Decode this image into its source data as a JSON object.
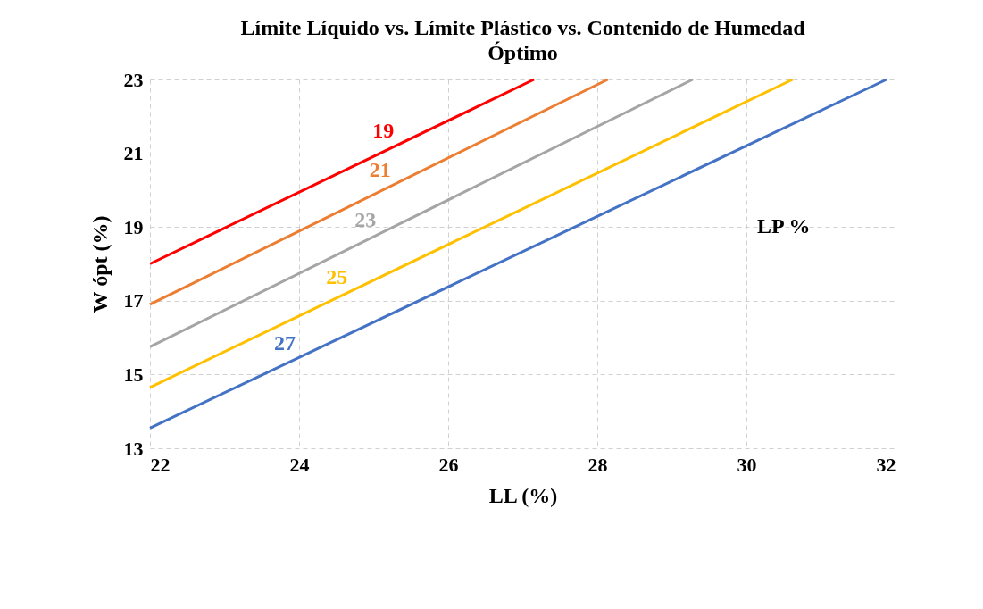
{
  "chart_data": {
    "type": "line",
    "title": "Límite Líquido vs. Límite Plástico vs. Contenido de Humedad Óptimo",
    "xlabel": "LL (%)",
    "ylabel": "W ópt (%)",
    "legend_title": "LP %",
    "series": [
      {
        "name": "19",
        "color": "#ff0000",
        "x": [
          22,
          27.15
        ],
        "values": [
          18.0,
          23
        ]
      },
      {
        "name": "21",
        "color": "#ed7d31",
        "x": [
          22,
          28.14
        ],
        "values": [
          16.9,
          23
        ]
      },
      {
        "name": "23",
        "color": "#a5a5a5",
        "x": [
          22,
          29.28
        ],
        "values": [
          15.75,
          23
        ]
      },
      {
        "name": "25",
        "color": "#ffc000",
        "x": [
          22,
          30.62
        ],
        "values": [
          14.65,
          23
        ]
      },
      {
        "name": "27",
        "color": "#4472c4",
        "x": [
          22,
          31.88
        ],
        "values": [
          13.55,
          23
        ]
      }
    ],
    "xlim": [
      22,
      32
    ],
    "xticks": [
      22,
      24,
      26,
      28,
      30,
      32
    ],
    "ylim": [
      13,
      23
    ],
    "yticks": [
      13,
      15,
      17,
      19,
      21,
      23
    ],
    "grid": true,
    "line_style": "solid",
    "marker": "none"
  }
}
